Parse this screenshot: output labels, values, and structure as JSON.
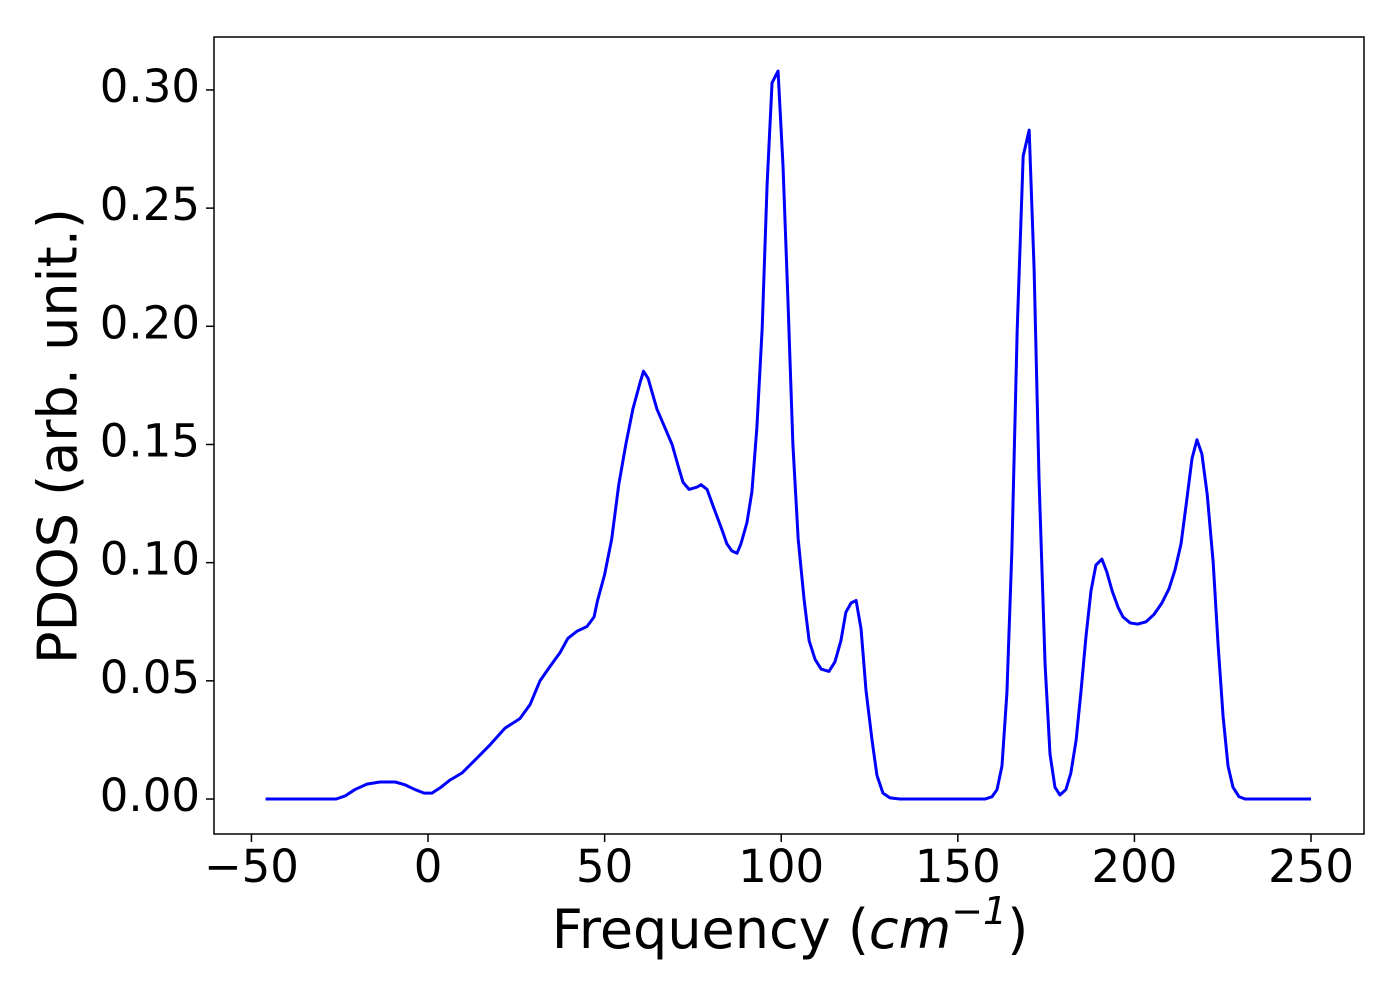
{
  "chart_data": {
    "type": "line",
    "xlabel": "Frequency (cm−1)",
    "ylabel": "PDOS (arb. unit.)",
    "xlim": [
      -60.6,
      265
    ],
    "ylim": [
      -0.0148,
      0.3224
    ],
    "xticks": [
      {
        "value": -50,
        "label": "−50"
      },
      0,
      50,
      100,
      150,
      200,
      250
    ],
    "yticks": [
      {
        "value": 0,
        "label": "0.00"
      },
      0.05,
      {
        "value": 0.1,
        "label": "0.10"
      },
      0.15,
      {
        "value": 0.2,
        "label": "0.20"
      },
      0.25,
      {
        "value": 0.3,
        "label": "0.30"
      }
    ],
    "x": [
      -46,
      -26,
      -23.5,
      -20.7,
      -17.3,
      -13.6,
      -9.3,
      -6.5,
      -3.7,
      -1.1,
      1.1,
      3.4,
      6.2,
      9.6,
      13.3,
      17.6,
      21.8,
      26,
      28.9,
      31.7,
      34.5,
      37.4,
      39.6,
      42.2,
      45,
      47,
      48,
      50,
      52,
      54,
      56,
      58,
      60,
      61,
      62.3,
      64.8,
      67.1,
      69.1,
      70.8,
      72.2,
      73.9,
      76.2,
      77.3,
      79,
      80.7,
      83.2,
      84.6,
      86,
      87.5,
      88.6,
      90.3,
      91.7,
      93.1,
      94.6,
      96,
      97.4,
      99.1,
      100.5,
      101.9,
      103.3,
      104.8,
      106.5,
      107.9,
      109.6,
      111.3,
      113.5,
      115.2,
      116.9,
      118.3,
      119.8,
      121.2,
      122.6,
      124,
      125.7,
      127.1,
      128.8,
      130.8,
      133.6,
      157.7,
      159.7,
      161.1,
      162.5,
      163.9,
      165.3,
      166.8,
      168.5,
      170.2,
      171.6,
      173,
      174.7,
      176.1,
      177.5,
      178.9,
      180.6,
      182,
      183.5,
      184.9,
      186.3,
      187.7,
      189.1,
      190.8,
      192.2,
      193.7,
      195.4,
      196.8,
      198.8,
      201,
      203.3,
      205.5,
      207.8,
      209.8,
      211.5,
      213.2,
      214.6,
      216.3,
      217.7,
      219.1,
      220.6,
      222.3,
      223.7,
      225.1,
      226.5,
      227.9,
      229.6,
      231.3,
      250
    ],
    "series": [
      {
        "color": "#0000ff",
        "values": [
          0,
          0,
          0.0013,
          0.004,
          0.0063,
          0.0072,
          0.0072,
          0.006,
          0.004,
          0.0025,
          0.0025,
          0.0047,
          0.008,
          0.011,
          0.0165,
          0.023,
          0.03,
          0.034,
          0.04,
          0.05,
          0.056,
          0.062,
          0.068,
          0.071,
          0.073,
          0.077,
          0.084,
          0.095,
          0.11,
          0.133,
          0.15,
          0.165,
          0.176,
          0.181,
          0.178,
          0.165,
          0.157,
          0.15,
          0.141,
          0.134,
          0.131,
          0.132,
          0.133,
          0.131,
          0.124,
          0.114,
          0.108,
          0.105,
          0.104,
          0.108,
          0.117,
          0.13,
          0.157,
          0.199,
          0.26,
          0.303,
          0.308,
          0.268,
          0.211,
          0.15,
          0.11,
          0.084,
          0.067,
          0.059,
          0.055,
          0.054,
          0.058,
          0.067,
          0.079,
          0.083,
          0.084,
          0.072,
          0.046,
          0.025,
          0.01,
          0.0025,
          0.0005,
          0,
          0,
          0.001,
          0.004,
          0.014,
          0.045,
          0.105,
          0.198,
          0.272,
          0.283,
          0.224,
          0.135,
          0.057,
          0.019,
          0.005,
          0.0017,
          0.004,
          0.011,
          0.025,
          0.046,
          0.069,
          0.088,
          0.099,
          0.1015,
          0.096,
          0.088,
          0.081,
          0.077,
          0.0745,
          0.074,
          0.075,
          0.078,
          0.083,
          0.089,
          0.097,
          0.108,
          0.124,
          0.144,
          0.152,
          0.146,
          0.129,
          0.1,
          0.065,
          0.035,
          0.014,
          0.005,
          0.001,
          0,
          0
        ]
      }
    ]
  }
}
